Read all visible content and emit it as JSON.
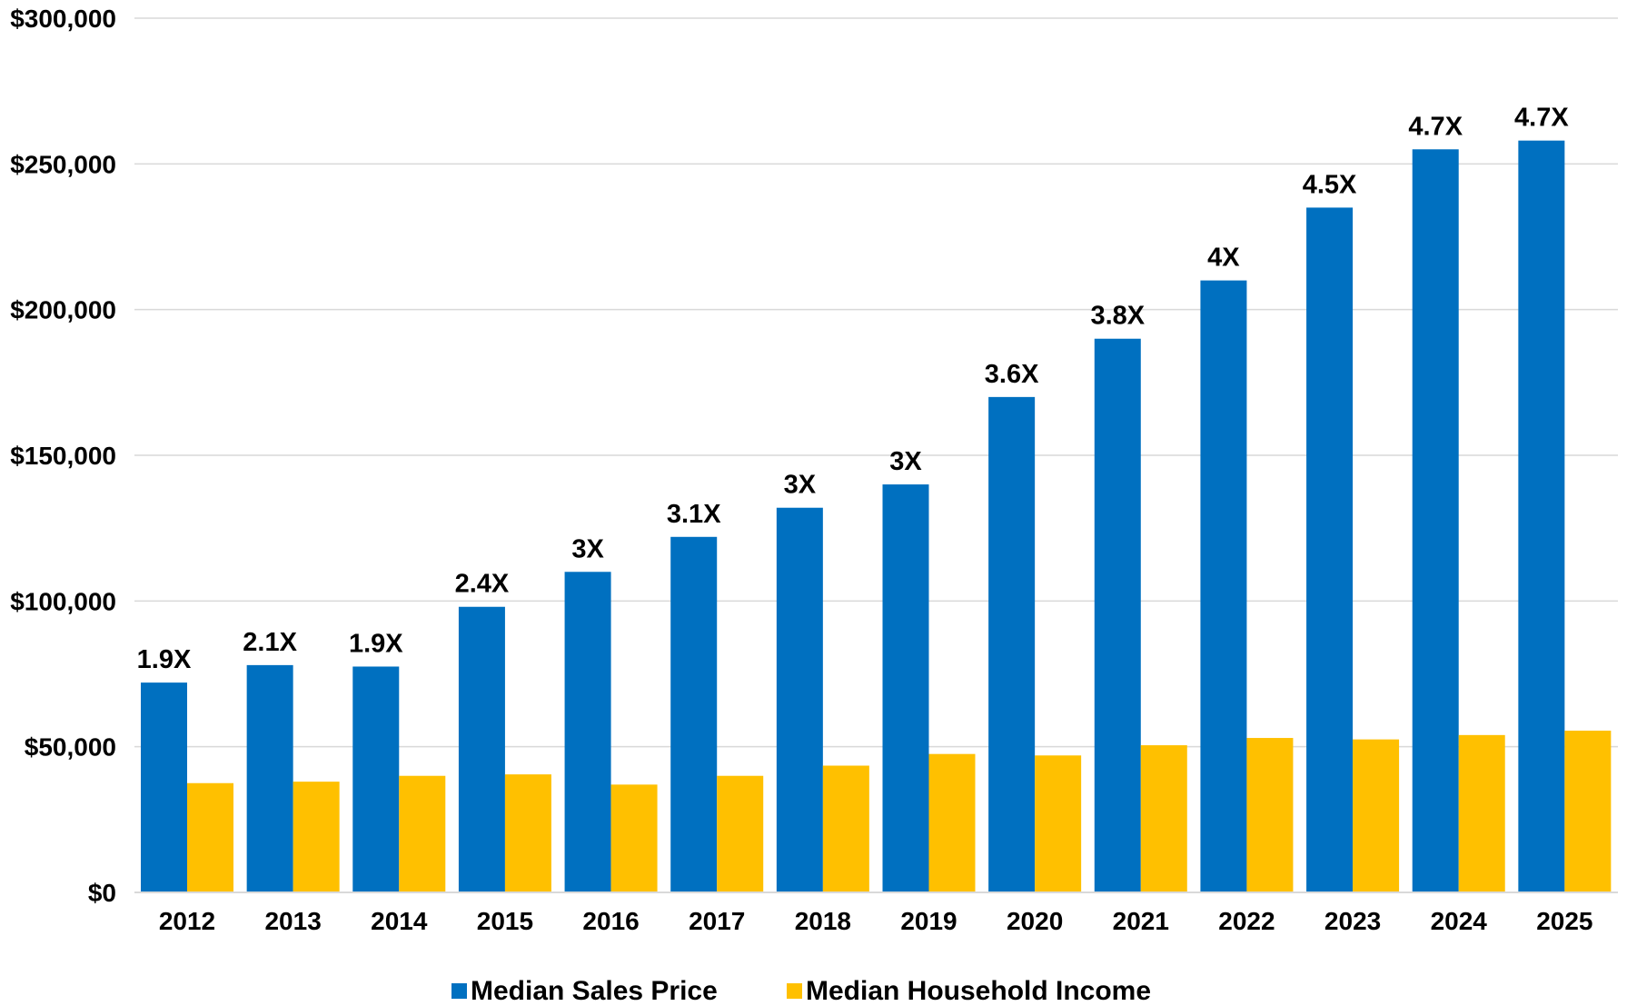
{
  "chart_data": {
    "type": "bar",
    "title": "",
    "xlabel": "",
    "ylabel": "",
    "categories": [
      "2012",
      "2013",
      "2014",
      "2015",
      "2016",
      "2017",
      "2018",
      "2019",
      "2020",
      "2021",
      "2022",
      "2023",
      "2024",
      "2025"
    ],
    "series": [
      {
        "name": "Median Sales Price",
        "color": "#0070C0",
        "values": [
          72000,
          78000,
          77500,
          98000,
          110000,
          122000,
          132000,
          140000,
          170000,
          190000,
          210000,
          235000,
          255000,
          258000
        ]
      },
      {
        "name": "Median Household Income",
        "color": "#FFC000",
        "values": [
          37500,
          38000,
          40000,
          40500,
          37000,
          40000,
          43500,
          47500,
          47000,
          50500,
          53000,
          52500,
          54000,
          55500
        ]
      }
    ],
    "data_labels": [
      "1.9X",
      "2.1X",
      "1.9X",
      "2.4X",
      "3X",
      "3.1X",
      "3X",
      "3X",
      "3.6X",
      "3.8X",
      "4X",
      "4.5X",
      "4.7X",
      "4.7X"
    ],
    "ylim": [
      0,
      300000
    ],
    "yticks": [
      0,
      50000,
      100000,
      150000,
      200000,
      250000,
      300000
    ],
    "ytick_labels": [
      "$0",
      "$50,000",
      "$100,000",
      "$150,000",
      "$200,000",
      "$250,000",
      "$300,000"
    ],
    "grid": true,
    "legend_position": "bottom"
  }
}
